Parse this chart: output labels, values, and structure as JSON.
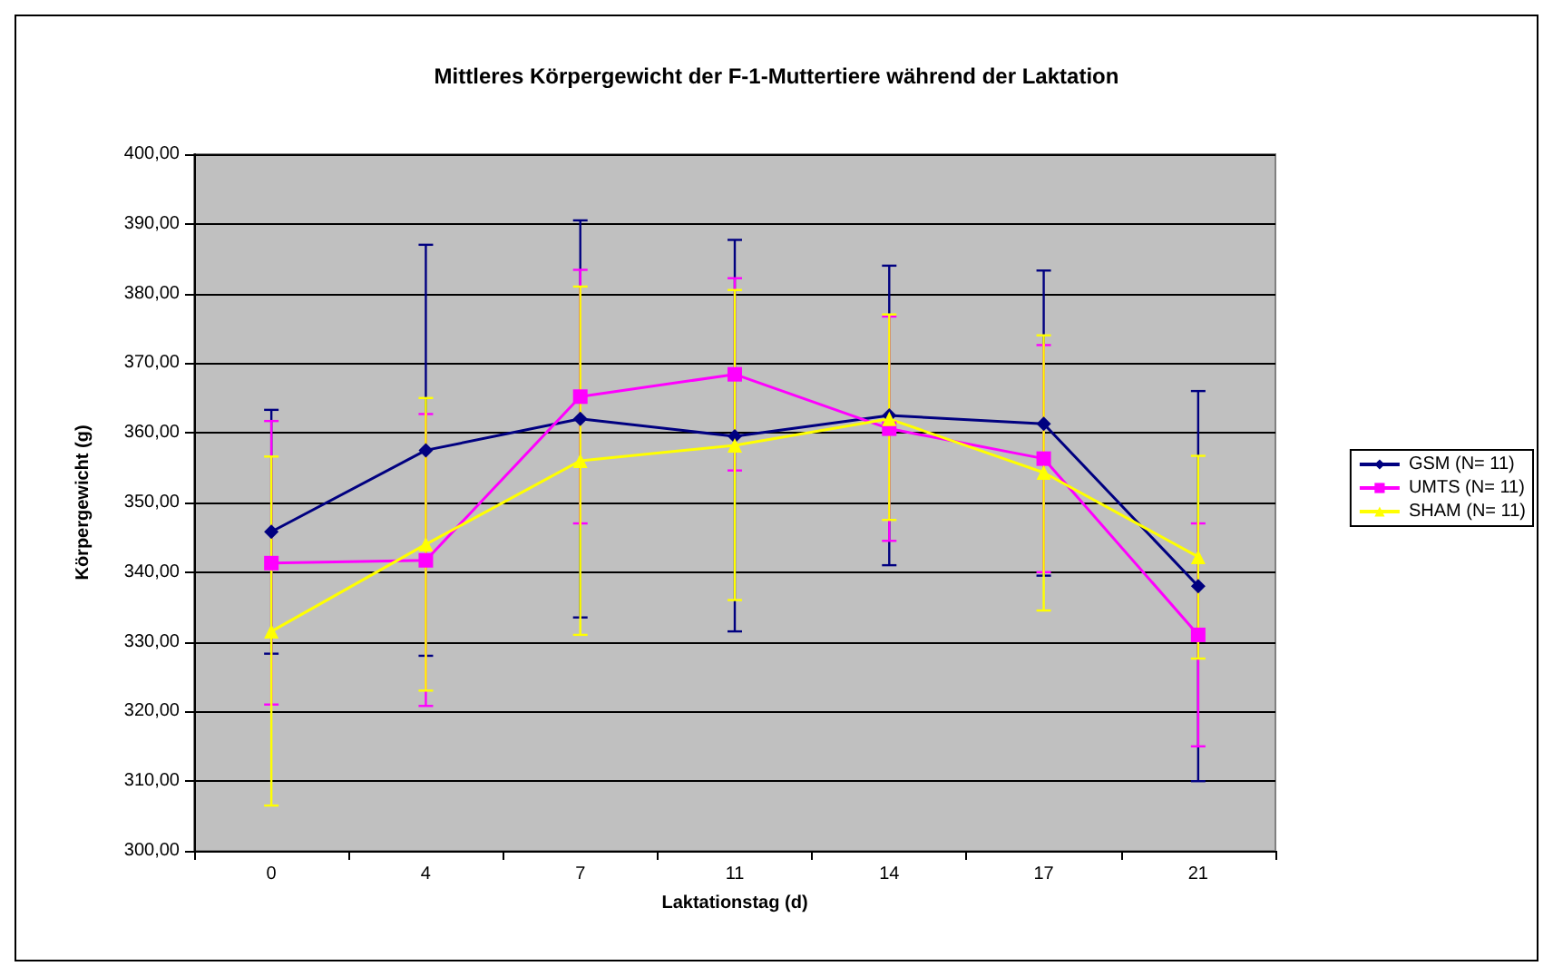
{
  "chart_data": {
    "type": "line",
    "title": "Mittleres Körpergewicht der F-1-Muttertiere während der Laktation",
    "xlabel": "Laktationstag (d)",
    "ylabel": "Körpergewicht (g)",
    "categories": [
      "0",
      "4",
      "7",
      "11",
      "14",
      "17",
      "21"
    ],
    "series": [
      {
        "name": "GSM (N= 11)",
        "color": "#000080",
        "marker": "diamond",
        "values": [
          345.8,
          357.5,
          362,
          359.5,
          362.5,
          361.3,
          338
        ],
        "errors": [
          [
            328.3,
            363.3
          ],
          [
            328,
            387
          ],
          [
            333.5,
            390.5
          ],
          [
            331.5,
            387.7
          ],
          [
            341,
            384
          ],
          [
            339.5,
            383.3
          ],
          [
            310,
            366
          ]
        ]
      },
      {
        "name": "UMTS (N= 11)",
        "color": "#ff00ff",
        "marker": "square",
        "values": [
          341.3,
          341.7,
          365.2,
          368.4,
          360.6,
          356.3,
          331
        ],
        "errors": [
          [
            321,
            361.7
          ],
          [
            320.8,
            362.7
          ],
          [
            347,
            383.4
          ],
          [
            354.6,
            382.2
          ],
          [
            344.5,
            376.7
          ],
          [
            340,
            372.6
          ],
          [
            315,
            347
          ]
        ]
      },
      {
        "name": "SHAM (N= 11)",
        "color": "#ffff00",
        "marker": "triangle",
        "values": [
          331.5,
          344,
          356,
          358.2,
          362,
          354.3,
          342.2
        ],
        "errors": [
          [
            306.5,
            356.6
          ],
          [
            323,
            365
          ],
          [
            331,
            381
          ],
          [
            336,
            380.5
          ],
          [
            347.5,
            377
          ],
          [
            334.5,
            374
          ],
          [
            327.6,
            356.7
          ]
        ]
      }
    ],
    "ylim": [
      300,
      400
    ],
    "yticks": [
      {
        "value": 300,
        "label": "300,00"
      },
      {
        "value": 310,
        "label": "310,00"
      },
      {
        "value": 320,
        "label": "320,00"
      },
      {
        "value": 330,
        "label": "330,00"
      },
      {
        "value": 340,
        "label": "340,00"
      },
      {
        "value": 350,
        "label": "350,00"
      },
      {
        "value": 360,
        "label": "360,00"
      },
      {
        "value": 370,
        "label": "370,00"
      },
      {
        "value": 380,
        "label": "380,00"
      },
      {
        "value": 390,
        "label": "390,00"
      },
      {
        "value": 400,
        "label": "400,00"
      }
    ],
    "grid": "y",
    "legend": "right",
    "line_style": "solid"
  }
}
